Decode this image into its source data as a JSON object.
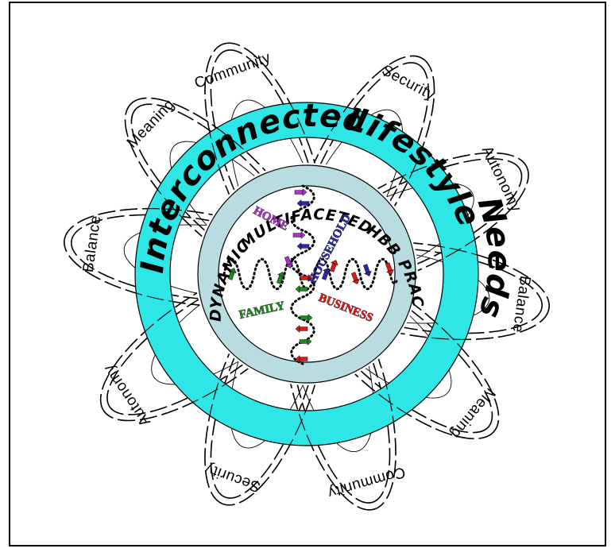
{
  "outer_ring_words": [
    "Interconnected",
    "Lifestyle",
    "Needs"
  ],
  "inner_ring_words": [
    "DYNAMIC",
    "MULTIFACETED",
    "HBB",
    "PRACTICE"
  ],
  "needs": [
    {
      "label": "Community"
    },
    {
      "label": "Security"
    },
    {
      "label": "Autonomy"
    },
    {
      "label": "Balance"
    },
    {
      "label": "Meaning"
    },
    {
      "label": "Community"
    },
    {
      "label": "Security"
    },
    {
      "label": "Autonomy"
    },
    {
      "label": "Balance"
    },
    {
      "label": "Meaning"
    }
  ],
  "center_labels": {
    "home": "HOME",
    "household": "HOUSEHOLD",
    "family": "FAMILY",
    "business": "BUSINESS"
  },
  "colors": {
    "outer_band": "#2ee6e6",
    "inner_band": "#b8dce0",
    "home": "#b030d0",
    "household": "#2a2aa8",
    "family": "#1c8c1c",
    "business": "#e01818"
  }
}
